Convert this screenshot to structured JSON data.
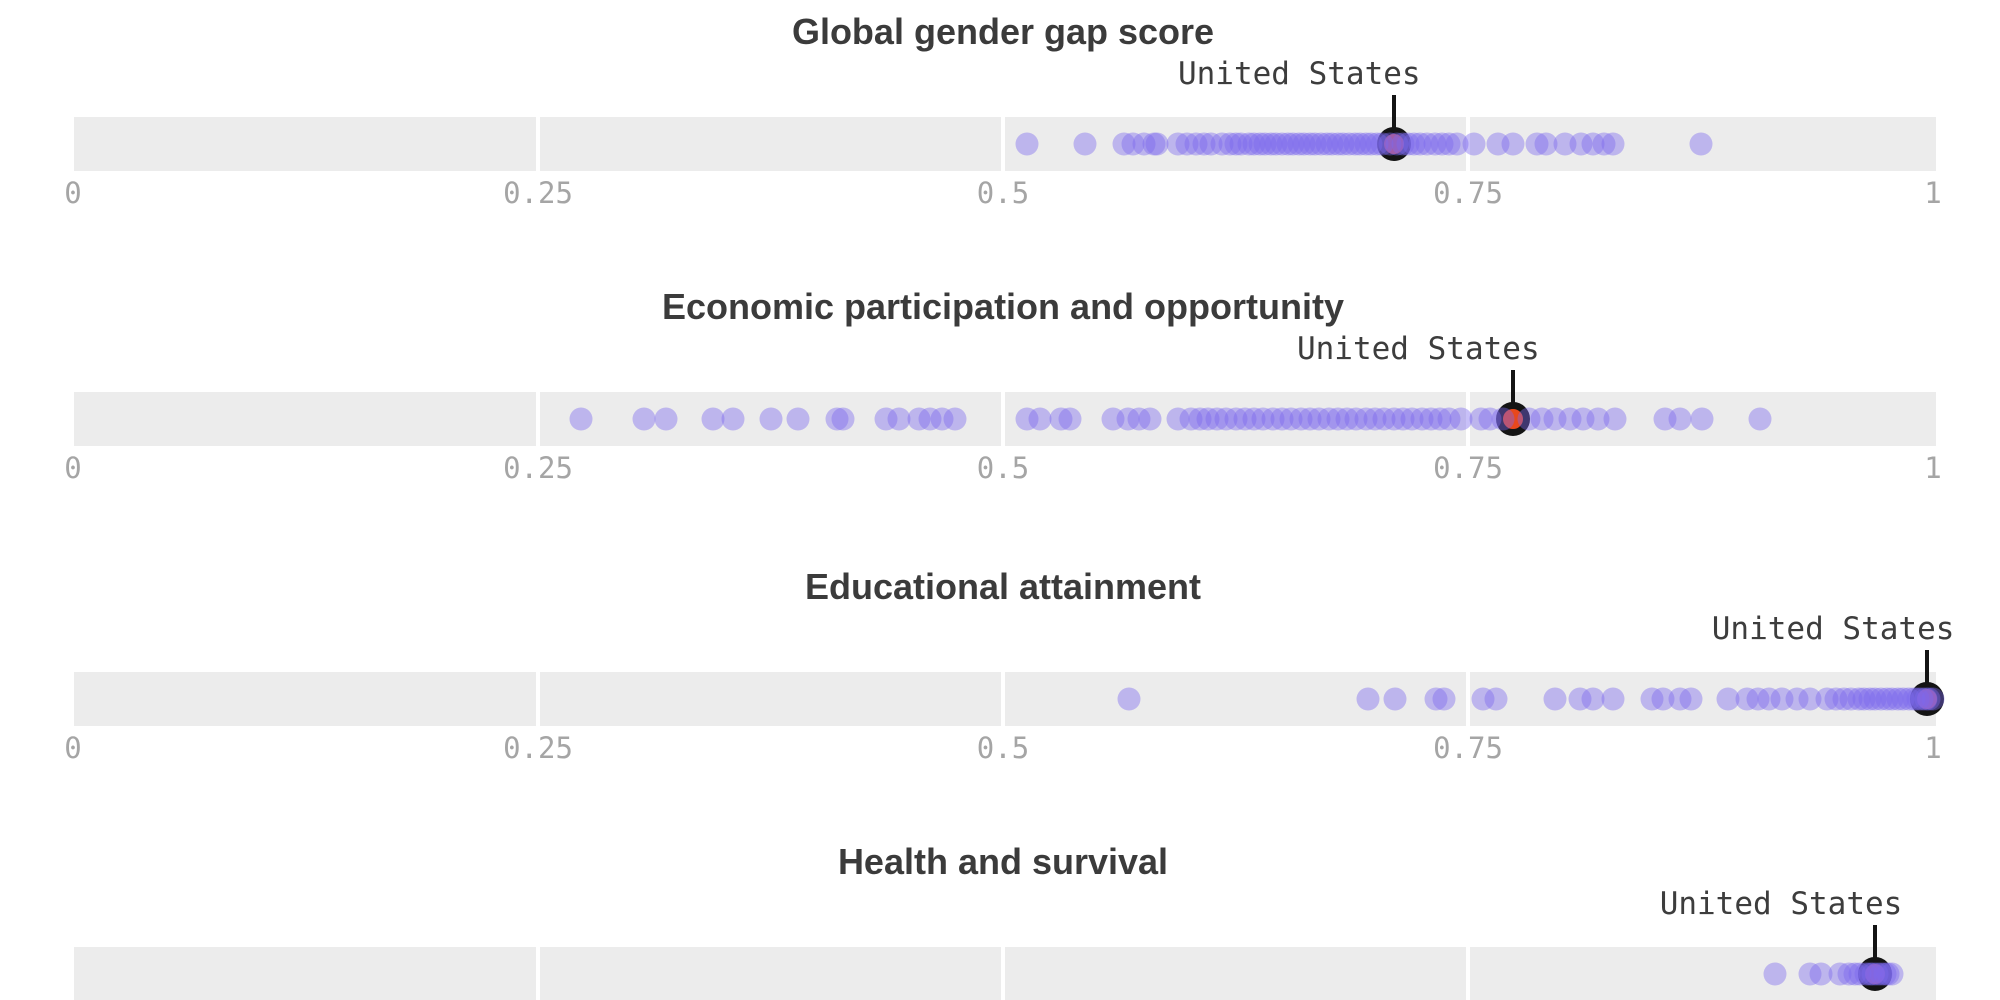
{
  "page": {
    "background": "#ffffff"
  },
  "chart_data": {
    "type": "scatter",
    "subtype": "strip-plot small multiples (one dot per country, United States highlighted)",
    "annotation_label": "United States",
    "x_axis": {
      "range": [
        0,
        1
      ],
      "tick_values": [
        0,
        0.25,
        0.5,
        0.75,
        1
      ],
      "ticks": [
        "0",
        "0.25",
        "0.5",
        "0.75",
        "1"
      ],
      "gridline_values": [
        0.25,
        0.5,
        0.75
      ],
      "grid": "white gaps inside gray band"
    },
    "colors": {
      "title_text": "#3b3b3b",
      "label_text": "#3d3d3d",
      "tick_text": "#a5a5a5",
      "bar": "#ececec",
      "dot": "rgba(123,104,238,0.42)",
      "marker_fill": "#e8481c",
      "marker_ring": "#141414"
    },
    "charts": [
      {
        "title": "Global gender gap score",
        "us_value": 0.71,
        "dots": [
          0.513,
          0.544,
          0.565,
          0.57,
          0.576,
          0.581,
          0.583,
          0.594,
          0.599,
          0.604,
          0.608,
          0.612,
          0.618,
          0.622,
          0.625,
          0.628,
          0.632,
          0.635,
          0.638,
          0.641,
          0.644,
          0.647,
          0.65,
          0.653,
          0.656,
          0.659,
          0.662,
          0.665,
          0.668,
          0.671,
          0.674,
          0.677,
          0.68,
          0.683,
          0.686,
          0.689,
          0.692,
          0.695,
          0.698,
          0.701,
          0.704,
          0.708,
          0.712,
          0.715,
          0.718,
          0.721,
          0.724,
          0.728,
          0.732,
          0.736,
          0.74,
          0.744,
          0.753,
          0.766,
          0.774,
          0.787,
          0.792,
          0.802,
          0.811,
          0.817,
          0.823,
          0.828,
          0.875
        ]
      },
      {
        "title": "Economic participation and opportunity",
        "us_value": 0.774,
        "dots": [
          0.273,
          0.307,
          0.319,
          0.344,
          0.355,
          0.375,
          0.39,
          0.411,
          0.414,
          0.437,
          0.444,
          0.455,
          0.461,
          0.467,
          0.474,
          0.513,
          0.52,
          0.531,
          0.536,
          0.559,
          0.567,
          0.573,
          0.579,
          0.594,
          0.601,
          0.606,
          0.61,
          0.615,
          0.62,
          0.625,
          0.63,
          0.635,
          0.64,
          0.645,
          0.65,
          0.655,
          0.66,
          0.665,
          0.67,
          0.675,
          0.68,
          0.685,
          0.69,
          0.695,
          0.7,
          0.705,
          0.71,
          0.715,
          0.72,
          0.725,
          0.73,
          0.735,
          0.74,
          0.746,
          0.757,
          0.762,
          0.769,
          0.783,
          0.79,
          0.797,
          0.805,
          0.812,
          0.82,
          0.829,
          0.856,
          0.864,
          0.876,
          0.907
        ]
      },
      {
        "title": "Educational attainment",
        "us_value": 0.997,
        "dots": [
          0.568,
          0.696,
          0.711,
          0.733,
          0.737,
          0.758,
          0.765,
          0.797,
          0.81,
          0.817,
          0.828,
          0.849,
          0.855,
          0.864,
          0.87,
          0.89,
          0.9,
          0.906,
          0.912,
          0.919,
          0.927,
          0.934,
          0.943,
          0.948,
          0.952,
          0.956,
          0.96,
          0.963,
          0.966,
          0.969,
          0.972,
          0.975,
          0.978,
          0.981,
          0.984,
          0.987,
          0.99,
          0.992,
          0.994,
          0.996,
          0.998,
          1.0
        ]
      },
      {
        "title": "Health and survival",
        "us_value": 0.969,
        "dots": [
          0.915,
          0.934,
          0.94,
          0.95,
          0.955,
          0.958,
          0.961,
          0.964,
          0.966,
          0.968,
          0.97,
          0.972,
          0.974,
          0.976,
          0.978
        ]
      }
    ]
  }
}
